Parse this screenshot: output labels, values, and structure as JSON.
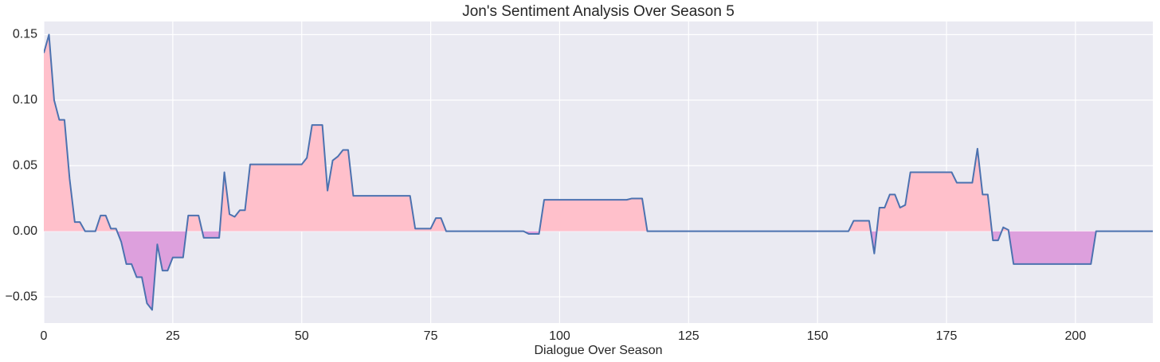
{
  "chart_data": {
    "type": "line",
    "title": "Jon's Sentiment Analysis Over Season 5",
    "x_label": "Dialogue Over Season",
    "x": [
      0,
      1,
      2,
      3,
      4,
      5,
      6,
      7,
      8,
      9,
      10,
      11,
      12,
      13,
      14,
      15,
      16,
      17,
      18,
      19,
      20,
      21,
      22,
      23,
      24,
      25,
      26,
      27,
      28,
      29,
      30,
      31,
      32,
      33,
      34,
      35,
      36,
      37,
      38,
      39,
      40,
      41,
      42,
      43,
      44,
      45,
      46,
      47,
      48,
      49,
      50,
      51,
      52,
      53,
      54,
      55,
      56,
      57,
      58,
      59,
      60,
      61,
      62,
      63,
      64,
      65,
      66,
      67,
      68,
      69,
      70,
      71,
      72,
      73,
      74,
      75,
      76,
      77,
      78,
      79,
      80,
      81,
      82,
      83,
      84,
      85,
      86,
      87,
      88,
      89,
      90,
      91,
      92,
      93,
      94,
      95,
      96,
      97,
      98,
      99,
      100,
      101,
      102,
      103,
      104,
      105,
      106,
      107,
      108,
      109,
      110,
      111,
      112,
      113,
      114,
      115,
      116,
      117,
      118,
      119,
      120,
      121,
      122,
      123,
      124,
      125,
      126,
      127,
      128,
      129,
      130,
      131,
      132,
      133,
      134,
      135,
      136,
      137,
      138,
      139,
      140,
      141,
      142,
      143,
      144,
      145,
      146,
      147,
      148,
      149,
      150,
      151,
      152,
      153,
      154,
      155,
      156,
      157,
      158,
      159,
      160,
      161,
      162,
      163,
      164,
      165,
      166,
      167,
      168,
      169,
      170,
      171,
      172,
      173,
      174,
      175,
      176,
      177,
      178,
      179,
      180,
      181,
      182,
      183,
      184,
      185,
      186,
      187,
      188,
      189,
      190,
      191,
      192,
      193,
      194,
      195,
      196,
      197,
      198,
      199,
      200,
      201,
      202,
      203,
      204,
      205,
      206,
      207,
      208,
      209,
      210,
      211,
      212,
      213,
      214,
      215
    ],
    "series": [
      {
        "color": "#4c72b0",
        "fill_above": "#ffc0cb",
        "fill_below": "#dda0dd",
        "values": [
          0.136,
          0.15,
          0.1,
          0.085,
          0.085,
          0.04,
          0.007,
          0.007,
          0,
          0,
          0,
          0.012,
          0.012,
          0.002,
          0.002,
          -0.008,
          -0.025,
          -0.025,
          -0.035,
          -0.035,
          -0.055,
          -0.06,
          -0.01,
          -0.03,
          -0.03,
          -0.02,
          -0.02,
          -0.02,
          0.012,
          0.012,
          0.012,
          -0.005,
          -0.005,
          -0.005,
          -0.005,
          0.045,
          0.013,
          0.011,
          0.016,
          0.016,
          0.051,
          0.051,
          0.051,
          0.051,
          0.051,
          0.051,
          0.051,
          0.051,
          0.051,
          0.051,
          0.051,
          0.056,
          0.081,
          0.081,
          0.081,
          0.031,
          0.054,
          0.057,
          0.062,
          0.062,
          0.027,
          0.027,
          0.027,
          0.027,
          0.027,
          0.027,
          0.027,
          0.027,
          0.027,
          0.027,
          0.027,
          0.027,
          0.002,
          0.002,
          0.002,
          0.002,
          0.01,
          0.01,
          0,
          0,
          0,
          0,
          0,
          0,
          0,
          0,
          0,
          0,
          0,
          0,
          0,
          0,
          0,
          0,
          -0.002,
          -0.002,
          -0.002,
          0.024,
          0.024,
          0.024,
          0.024,
          0.024,
          0.024,
          0.024,
          0.024,
          0.024,
          0.024,
          0.024,
          0.024,
          0.024,
          0.024,
          0.024,
          0.024,
          0.024,
          0.025,
          0.025,
          0.025,
          0,
          0,
          0,
          0,
          0,
          0,
          0,
          0,
          0,
          0,
          0,
          0,
          0,
          0,
          0,
          0,
          0,
          0,
          0,
          0,
          0,
          0,
          0,
          0,
          0,
          0,
          0,
          0,
          0,
          0,
          0,
          0,
          0,
          0,
          0,
          0,
          0,
          0,
          0,
          0,
          0.008,
          0.008,
          0.008,
          0.008,
          -0.017,
          0.018,
          0.018,
          0.028,
          0.028,
          0.018,
          0.02,
          0.045,
          0.045,
          0.045,
          0.045,
          0.045,
          0.045,
          0.045,
          0.045,
          0.045,
          0.037,
          0.037,
          0.037,
          0.037,
          0.063,
          0.028,
          0.028,
          -0.007,
          -0.007,
          0.003,
          0.001,
          -0.025,
          -0.025,
          -0.025,
          -0.025,
          -0.025,
          -0.025,
          -0.025,
          -0.025,
          -0.025,
          -0.025,
          -0.025,
          -0.025,
          -0.025,
          -0.025,
          -0.025,
          -0.025,
          0,
          0,
          0,
          0,
          0,
          0,
          0,
          0,
          0,
          0,
          0,
          0
        ]
      }
    ],
    "xlim": [
      0,
      215
    ],
    "ylim": [
      -0.07,
      0.16
    ],
    "xticks": [
      0,
      25,
      50,
      75,
      100,
      125,
      150,
      175,
      200
    ],
    "yticks": [
      {
        "value": -0.05,
        "label": "−0.05"
      },
      {
        "value": 0,
        "label": "0.00"
      },
      {
        "value": 0.05,
        "label": "0.05"
      },
      {
        "value": 0.1,
        "label": "0.10"
      },
      {
        "value": 0.15,
        "label": "0.15"
      }
    ],
    "grid": true,
    "background": "#eaeaf2"
  }
}
